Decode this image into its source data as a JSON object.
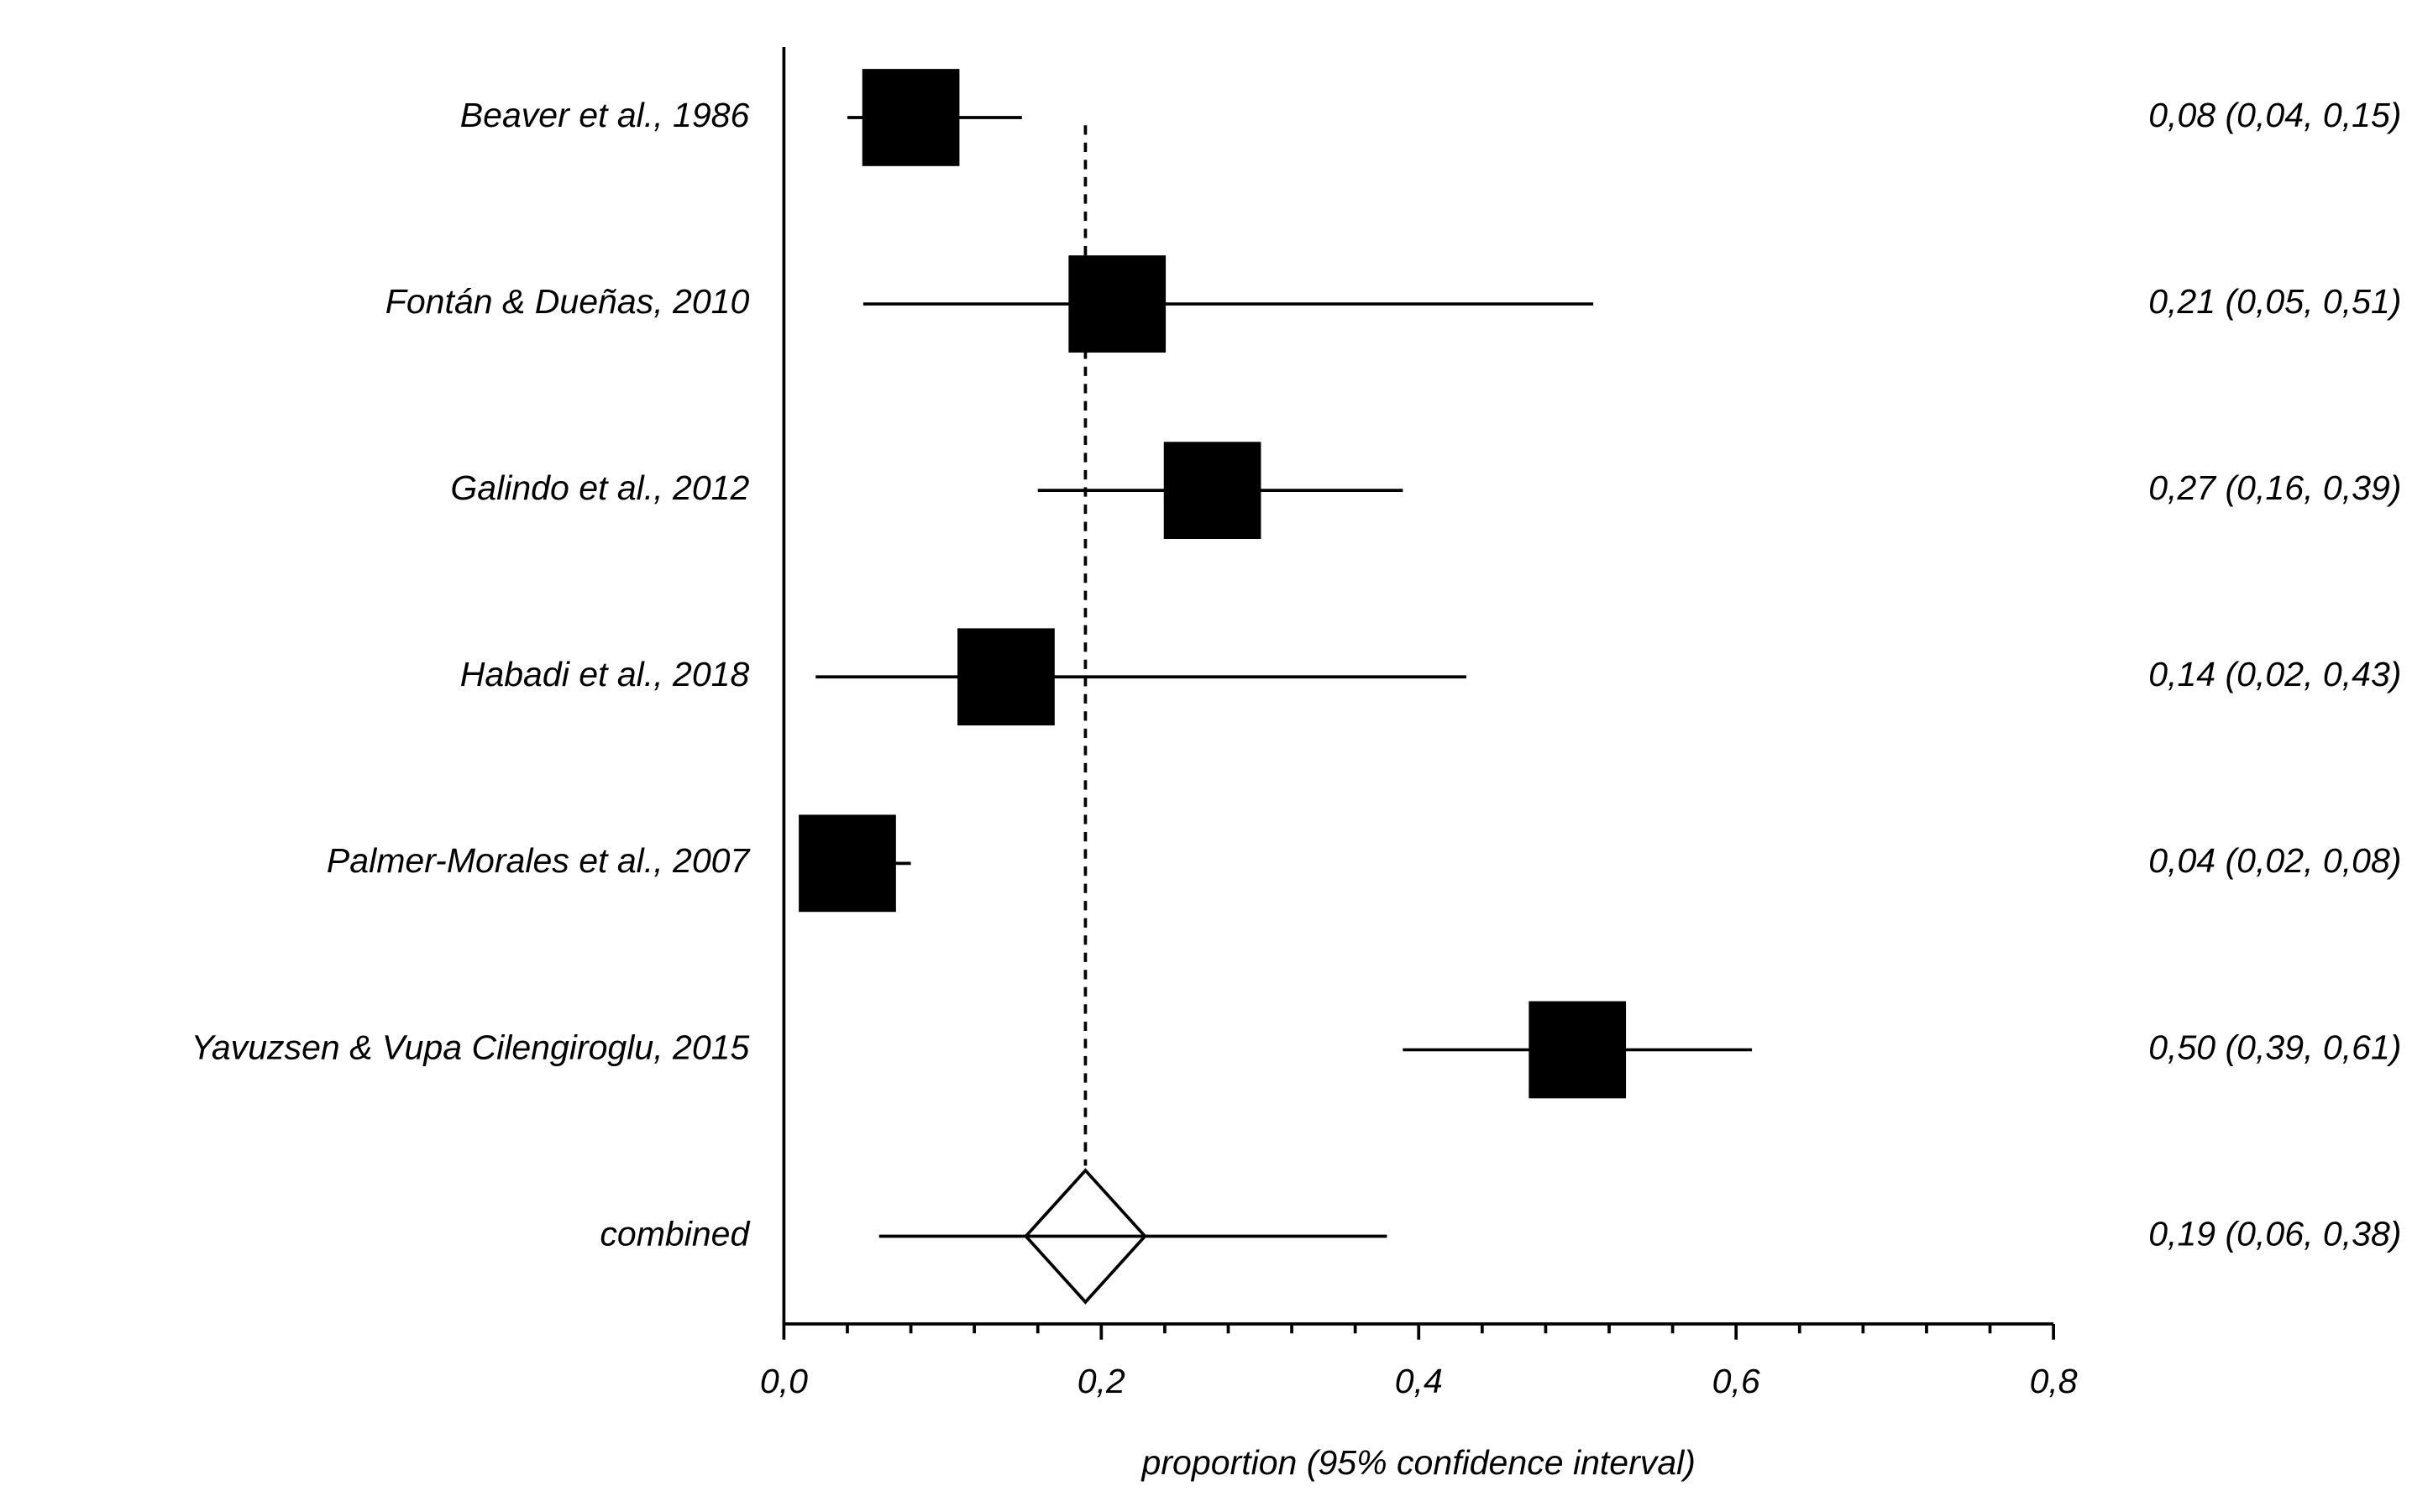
{
  "chart_data": {
    "type": "forest",
    "categories": [
      "Beaver et al., 1986",
      "Fontán & Dueñas, 2010",
      "Galindo et al., 2012",
      "Habadi et al., 2018",
      "Palmer-Morales et al., 2007",
      "Yavuzsen & Vupa Cilengiroglu, 2015"
    ],
    "values": [
      0.08,
      0.21,
      0.27,
      0.14,
      0.04,
      0.5
    ],
    "lower": [
      0.04,
      0.05,
      0.16,
      0.02,
      0.02,
      0.39
    ],
    "upper": [
      0.15,
      0.51,
      0.39,
      0.43,
      0.08,
      0.61
    ],
    "value_labels": [
      "0,08 (0,04, 0,15)",
      "0,21 (0,05, 0,51)",
      "0,27 (0,16, 0,39)",
      "0,14 (0,02, 0,43)",
      "0,04 (0,02, 0,08)",
      "0,50 (0,39, 0,61)"
    ],
    "combined": {
      "label": "combined",
      "value": 0.19,
      "lower": 0.06,
      "upper": 0.38,
      "value_label": "0,19 (0,06, 0,38)"
    },
    "xlabel": "proportion (95% confidence interval)",
    "xlim": [
      0,
      0.8
    ],
    "xticks": [
      {
        "value": 0,
        "label": "0,0"
      },
      {
        "value": 0.2,
        "label": "0,2"
      },
      {
        "value": 0.4,
        "label": "0,4"
      },
      {
        "value": 0.6,
        "label": "0,6"
      },
      {
        "value": 0.8,
        "label": "0,8"
      }
    ],
    "xminorticks": [
      0.04,
      0.08,
      0.12,
      0.16,
      0.24,
      0.28,
      0.32,
      0.36,
      0.44,
      0.48,
      0.52,
      0.56,
      0.64,
      0.68,
      0.72,
      0.76
    ],
    "color": "#000000"
  }
}
